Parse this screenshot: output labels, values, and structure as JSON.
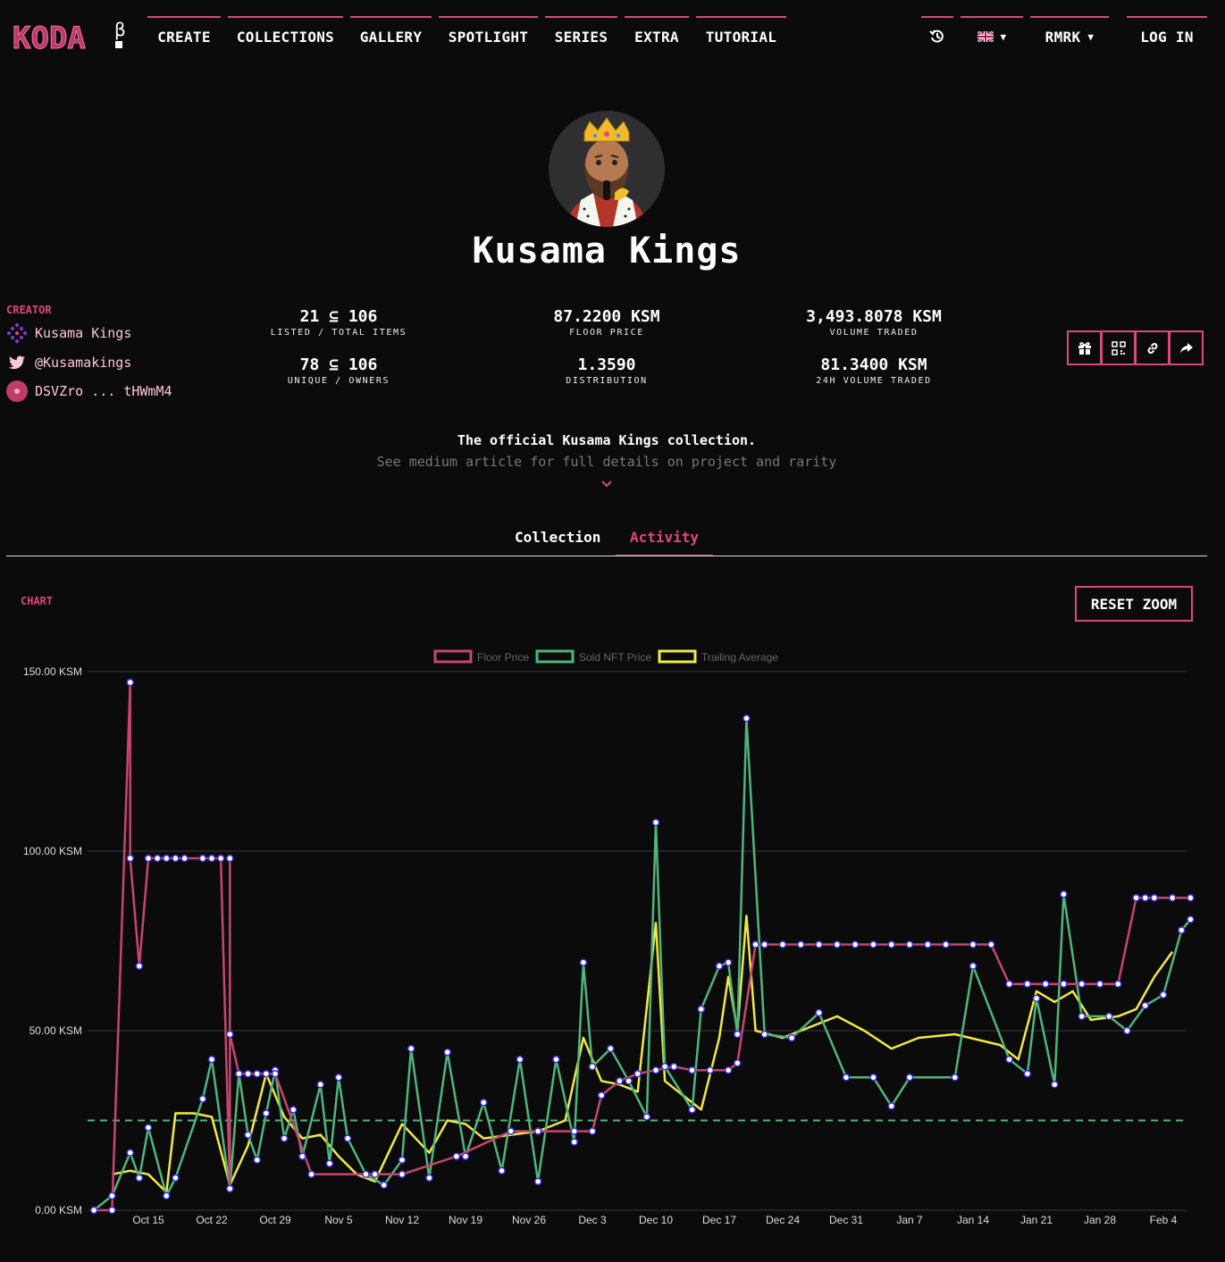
{
  "navbar": {
    "logo_text": "KODA",
    "beta_mark": "β",
    "items": [
      {
        "label": "CREATE"
      },
      {
        "label": "COLLECTIONS"
      },
      {
        "label": "GALLERY"
      },
      {
        "label": "SPOTLIGHT"
      },
      {
        "label": "SERIES"
      },
      {
        "label": "EXTRA"
      },
      {
        "label": "TUTORIAL"
      }
    ],
    "history_icon": "history-icon",
    "language_flag": "uk-flag-icon",
    "chain": "RMRK",
    "login_label": "LOG IN"
  },
  "collection": {
    "name": "Kusama Kings",
    "description_line1": "The official Kusama Kings collection.",
    "description_line2": "See medium article for full details on project and rarity"
  },
  "creator": {
    "label": "CREATOR",
    "name": "Kusama Kings",
    "twitter": "@Kusamakings",
    "address": "DSVZro ... tHWmM4"
  },
  "stats": [
    {
      "value": "21 ⊆ 106",
      "label": "LISTED / TOTAL ITEMS"
    },
    {
      "value": "87.2200 KSM",
      "label": "FLOOR PRICE"
    },
    {
      "value": "3,493.8078 KSM",
      "label": "VOLUME TRADED"
    },
    {
      "value": "78 ⊆ 106",
      "label": "UNIQUE / OWNERS"
    },
    {
      "value": "1.3590",
      "label": "DISTRIBUTION"
    },
    {
      "value": "81.3400 KSM",
      "label": "24H VOLUME TRADED"
    }
  ],
  "actions": [
    "gift-icon",
    "qr-code-icon",
    "link-icon",
    "share-icon"
  ],
  "tabs": [
    {
      "label": "Collection",
      "active": false
    },
    {
      "label": "Activity",
      "active": true
    }
  ],
  "chart_section": {
    "label": "CHART",
    "reset_zoom_label": "RESET ZOOM"
  },
  "colors": {
    "accent": "#d9487a",
    "floor": "#c8456f",
    "sold": "#4fb57f",
    "trailing": "#f3e940",
    "point_stroke": "#3b2ee0"
  },
  "chart_data": {
    "type": "line",
    "title": "",
    "xlabel": "",
    "ylabel": "",
    "ylim": [
      0,
      150
    ],
    "y_ticks": [
      "0.00 KSM",
      "50.00 KSM",
      "100.00 KSM",
      "150.00 KSM"
    ],
    "x_ticks": [
      "Oct 15",
      "Oct 22",
      "Oct 29",
      "Nov 5",
      "Nov 12",
      "Nov 19",
      "Nov 26",
      "Dec 3",
      "Dec 10",
      "Dec 17",
      "Dec 24",
      "Dec 31",
      "Jan 7",
      "Jan 14",
      "Jan 21",
      "Jan 28",
      "Feb 4"
    ],
    "legend": [
      "Floor Price",
      "Sold NFT Price",
      "Trailing Average"
    ],
    "legend_position": "top",
    "grid": true,
    "reference_line": {
      "value": 25,
      "style": "dashed",
      "color": "#4fb57f"
    },
    "series": [
      {
        "name": "Floor Price",
        "points": [
          [
            "Oct 9",
            0
          ],
          [
            "Oct 11",
            0
          ],
          [
            "Oct 13",
            147
          ],
          [
            "Oct 13",
            98
          ],
          [
            "Oct 14",
            68
          ],
          [
            "Oct 15",
            98
          ],
          [
            "Oct 16",
            98
          ],
          [
            "Oct 17",
            98
          ],
          [
            "Oct 18",
            98
          ],
          [
            "Oct 19",
            98
          ],
          [
            "Oct 21",
            98
          ],
          [
            "Oct 22",
            98
          ],
          [
            "Oct 23",
            98
          ],
          [
            "Oct 23",
            98
          ],
          [
            "Oct 24",
            6
          ],
          [
            "Oct 24",
            98
          ],
          [
            "Oct 24",
            49
          ],
          [
            "Oct 25",
            38
          ],
          [
            "Oct 26",
            38
          ],
          [
            "Oct 27",
            38
          ],
          [
            "Oct 28",
            38
          ],
          [
            "Oct 29",
            38
          ],
          [
            "Nov 2",
            10
          ],
          [
            "Nov 9",
            10
          ],
          [
            "Nov 12",
            10
          ],
          [
            "Nov 18",
            15
          ],
          [
            "Nov 24",
            22
          ],
          [
            "Nov 27",
            22
          ],
          [
            "Dec 1",
            22
          ],
          [
            "Dec 3",
            22
          ],
          [
            "Dec 4",
            32
          ],
          [
            "Dec 6",
            36
          ],
          [
            "Dec 8",
            38
          ],
          [
            "Dec 10",
            39
          ],
          [
            "Dec 12",
            40
          ],
          [
            "Dec 14",
            39
          ],
          [
            "Dec 16",
            39
          ],
          [
            "Dec 18",
            39
          ],
          [
            "Dec 19",
            41
          ],
          [
            "Dec 21",
            74
          ],
          [
            "Dec 22",
            74
          ],
          [
            "Dec 24",
            74
          ],
          [
            "Dec 26",
            74
          ],
          [
            "Dec 28",
            74
          ],
          [
            "Dec 30",
            74
          ],
          [
            "Jan 1",
            74
          ],
          [
            "Jan 3",
            74
          ],
          [
            "Jan 5",
            74
          ],
          [
            "Jan 7",
            74
          ],
          [
            "Jan 9",
            74
          ],
          [
            "Jan 11",
            74
          ],
          [
            "Jan 14",
            74
          ],
          [
            "Jan 16",
            74
          ],
          [
            "Jan 18",
            63
          ],
          [
            "Jan 20",
            63
          ],
          [
            "Jan 22",
            63
          ],
          [
            "Jan 24",
            63
          ],
          [
            "Jan 26",
            63
          ],
          [
            "Jan 28",
            63
          ],
          [
            "Jan 30",
            63
          ],
          [
            "Feb 1",
            87
          ],
          [
            "Feb 2",
            87
          ],
          [
            "Feb 3",
            87
          ],
          [
            "Feb 5",
            87
          ],
          [
            "Feb 7",
            87
          ]
        ]
      },
      {
        "name": "Sold NFT Price",
        "points": [
          [
            "Oct 9",
            0
          ],
          [
            "Oct 11",
            4
          ],
          [
            "Oct 13",
            16
          ],
          [
            "Oct 14",
            9
          ],
          [
            "Oct 15",
            23
          ],
          [
            "Oct 17",
            4
          ],
          [
            "Oct 18",
            9
          ],
          [
            "Oct 21",
            31
          ],
          [
            "Oct 22",
            42
          ],
          [
            "Oct 24",
            6
          ],
          [
            "Oct 25",
            38
          ],
          [
            "Oct 26",
            21
          ],
          [
            "Oct 27",
            14
          ],
          [
            "Oct 28",
            27
          ],
          [
            "Oct 29",
            39
          ],
          [
            "Oct 30",
            20
          ],
          [
            "Oct 31",
            28
          ],
          [
            "Nov 1",
            15
          ],
          [
            "Nov 3",
            35
          ],
          [
            "Nov 4",
            13
          ],
          [
            "Nov 5",
            37
          ],
          [
            "Nov 6",
            20
          ],
          [
            "Nov 8",
            10
          ],
          [
            "Nov 10",
            7
          ],
          [
            "Nov 12",
            14
          ],
          [
            "Nov 13",
            45
          ],
          [
            "Nov 15",
            9
          ],
          [
            "Nov 17",
            44
          ],
          [
            "Nov 19",
            15
          ],
          [
            "Nov 21",
            30
          ],
          [
            "Nov 23",
            11
          ],
          [
            "Nov 25",
            42
          ],
          [
            "Nov 27",
            8
          ],
          [
            "Nov 29",
            42
          ],
          [
            "Dec 1",
            19
          ],
          [
            "Dec 2",
            69
          ],
          [
            "Dec 3",
            40
          ],
          [
            "Dec 5",
            45
          ],
          [
            "Dec 7",
            36
          ],
          [
            "Dec 9",
            26
          ],
          [
            "Dec 10",
            108
          ],
          [
            "Dec 11",
            40
          ],
          [
            "Dec 14",
            28
          ],
          [
            "Dec 15",
            56
          ],
          [
            "Dec 17",
            68
          ],
          [
            "Dec 18",
            69
          ],
          [
            "Dec 19",
            49
          ],
          [
            "Dec 20",
            137
          ],
          [
            "Dec 22",
            49
          ],
          [
            "Dec 25",
            48
          ],
          [
            "Dec 28",
            55
          ],
          [
            "Dec 31",
            37
          ],
          [
            "Jan 3",
            37
          ],
          [
            "Jan 5",
            29
          ],
          [
            "Jan 7",
            37
          ],
          [
            "Jan 12",
            37
          ],
          [
            "Jan 14",
            68
          ],
          [
            "Jan 18",
            42
          ],
          [
            "Jan 20",
            38
          ],
          [
            "Jan 21",
            59
          ],
          [
            "Jan 23",
            35
          ],
          [
            "Jan 24",
            88
          ],
          [
            "Jan 26",
            54
          ],
          [
            "Jan 29",
            54
          ],
          [
            "Jan 31",
            50
          ],
          [
            "Feb 2",
            57
          ],
          [
            "Feb 4",
            60
          ],
          [
            "Feb 6",
            78
          ],
          [
            "Feb 7",
            81
          ]
        ]
      },
      {
        "name": "Trailing Average",
        "points": [
          [
            "Oct 11",
            10
          ],
          [
            "Oct 13",
            11
          ],
          [
            "Oct 15",
            10
          ],
          [
            "Oct 17",
            5
          ],
          [
            "Oct 18",
            27
          ],
          [
            "Oct 20",
            27
          ],
          [
            "Oct 22",
            26
          ],
          [
            "Oct 24",
            7
          ],
          [
            "Oct 26",
            18
          ],
          [
            "Oct 28",
            38
          ],
          [
            "Oct 30",
            26
          ],
          [
            "Nov 1",
            20
          ],
          [
            "Nov 3",
            21
          ],
          [
            "Nov 5",
            15
          ],
          [
            "Nov 7",
            10
          ],
          [
            "Nov 9",
            8
          ],
          [
            "Nov 12",
            24
          ],
          [
            "Nov 15",
            16
          ],
          [
            "Nov 17",
            25
          ],
          [
            "Nov 19",
            24
          ],
          [
            "Nov 21",
            20
          ],
          [
            "Nov 24",
            21
          ],
          [
            "Nov 27",
            22
          ],
          [
            "Nov 30",
            25
          ],
          [
            "Dec 2",
            48
          ],
          [
            "Dec 4",
            36
          ],
          [
            "Dec 6",
            35
          ],
          [
            "Dec 8",
            33
          ],
          [
            "Dec 10",
            80
          ],
          [
            "Dec 11",
            36
          ],
          [
            "Dec 13",
            32
          ],
          [
            "Dec 15",
            28
          ],
          [
            "Dec 17",
            48
          ],
          [
            "Dec 18",
            65
          ],
          [
            "Dec 19",
            50
          ],
          [
            "Dec 20",
            82
          ],
          [
            "Dec 21",
            50
          ],
          [
            "Dec 24",
            48
          ],
          [
            "Dec 27",
            51
          ],
          [
            "Dec 30",
            54
          ],
          [
            "Jan 2",
            50
          ],
          [
            "Jan 5",
            45
          ],
          [
            "Jan 8",
            48
          ],
          [
            "Jan 12",
            49
          ],
          [
            "Jan 17",
            46
          ],
          [
            "Jan 19",
            42
          ],
          [
            "Jan 21",
            61
          ],
          [
            "Jan 23",
            58
          ],
          [
            "Jan 25",
            61
          ],
          [
            "Jan 27",
            53
          ],
          [
            "Jan 30",
            54
          ],
          [
            "Feb 1",
            56
          ],
          [
            "Feb 3",
            65
          ],
          [
            "Feb 5",
            72
          ]
        ]
      }
    ]
  }
}
